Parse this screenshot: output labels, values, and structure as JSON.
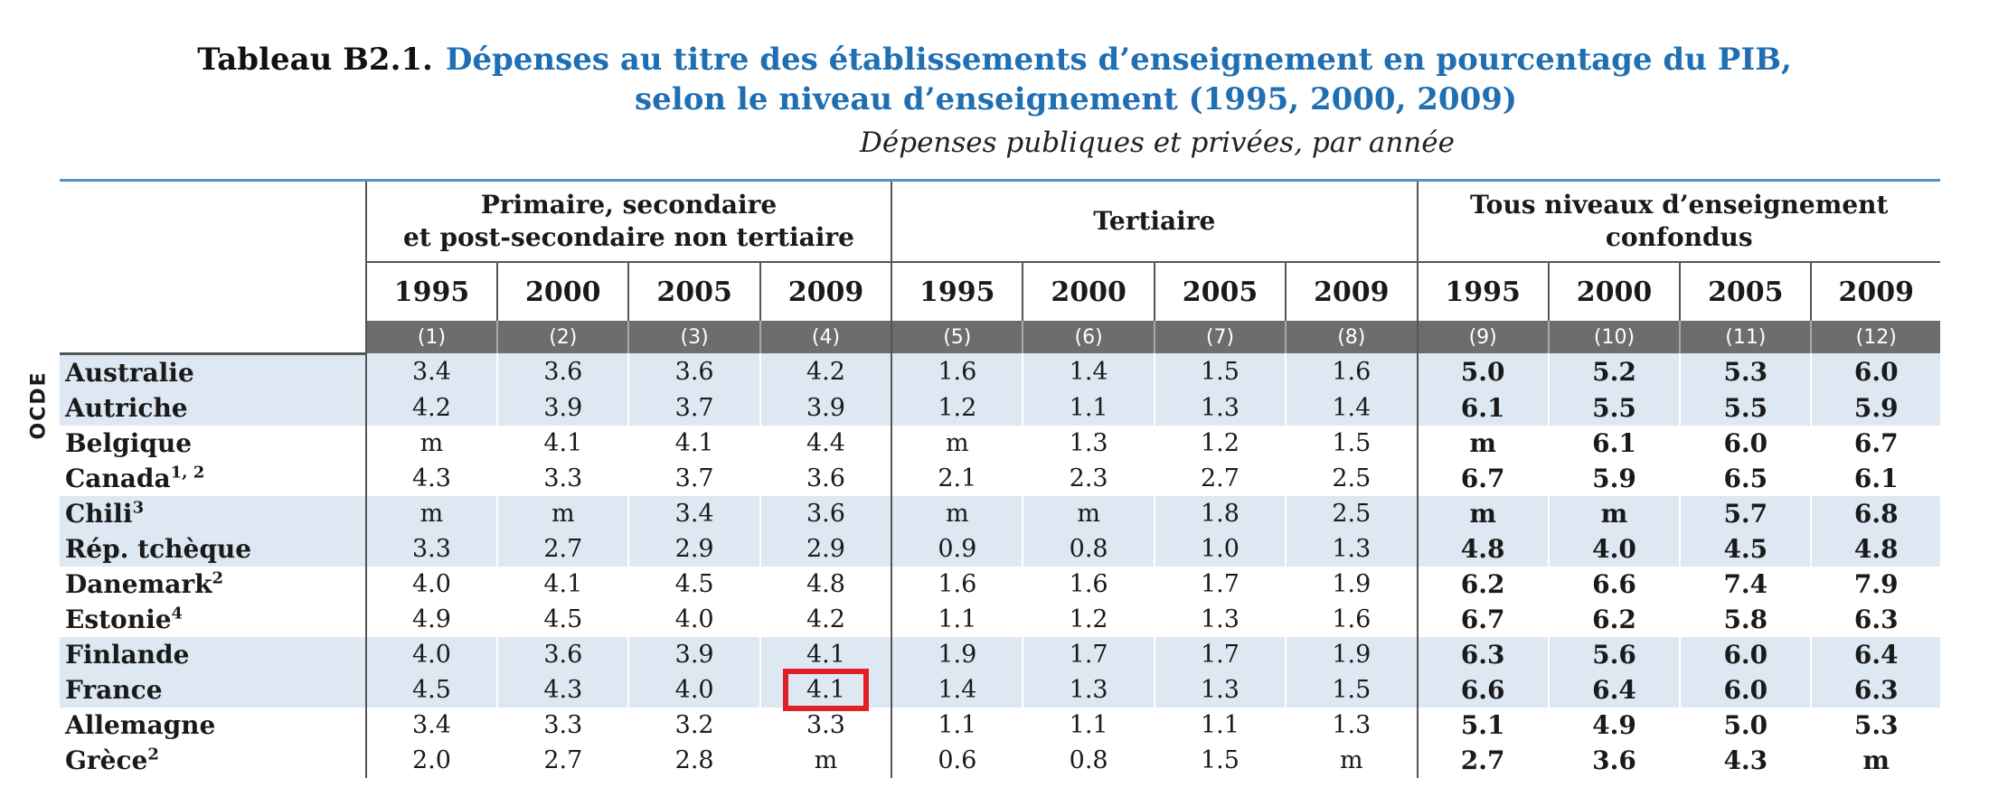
{
  "title": {
    "prefix": "Tableau B2.1.",
    "line1": "Dépenses au titre des établissements d’enseignement en pourcentage du PIB,",
    "line2": "selon le niveau d’enseignement (1995, 2000, 2009)"
  },
  "subtitle": "Dépenses publiques et privées, par année",
  "side_label": "OCDE",
  "groups": [
    {
      "line1": "Primaire, secondaire",
      "line2": "et post-secondaire non tertiaire"
    },
    {
      "line1": "Tertiaire",
      "line2": ""
    },
    {
      "line1": "Tous niveaux d’enseignement",
      "line2": "confondus"
    }
  ],
  "years": [
    "1995",
    "2000",
    "2005",
    "2009",
    "1995",
    "2000",
    "2005",
    "2009",
    "1995",
    "2000",
    "2005",
    "2009"
  ],
  "col_numbers": [
    "(1)",
    "(2)",
    "(3)",
    "(4)",
    "(5)",
    "(6)",
    "(7)",
    "(8)",
    "(9)",
    "(10)",
    "(11)",
    "(12)"
  ],
  "rows": [
    {
      "country": "Australie",
      "sup": "",
      "values": [
        "3.4",
        "3.6",
        "3.6",
        "4.2",
        "1.6",
        "1.4",
        "1.5",
        "1.6",
        "5.0",
        "5.2",
        "5.3",
        "6.0"
      ]
    },
    {
      "country": "Autriche",
      "sup": "",
      "values": [
        "4.2",
        "3.9",
        "3.7",
        "3.9",
        "1.2",
        "1.1",
        "1.3",
        "1.4",
        "6.1",
        "5.5",
        "5.5",
        "5.9"
      ]
    },
    {
      "country": "Belgique",
      "sup": "",
      "values": [
        "m",
        "4.1",
        "4.1",
        "4.4",
        "m",
        "1.3",
        "1.2",
        "1.5",
        "m",
        "6.1",
        "6.0",
        "6.7"
      ]
    },
    {
      "country": "Canada",
      "sup": "1, 2",
      "values": [
        "4.3",
        "3.3",
        "3.7",
        "3.6",
        "2.1",
        "2.3",
        "2.7",
        "2.5",
        "6.7",
        "5.9",
        "6.5",
        "6.1"
      ]
    },
    {
      "country": "Chili",
      "sup": "3",
      "values": [
        "m",
        "m",
        "3.4",
        "3.6",
        "m",
        "m",
        "1.8",
        "2.5",
        "m",
        "m",
        "5.7",
        "6.8"
      ]
    },
    {
      "country": "Rép. tchèque",
      "sup": "",
      "values": [
        "3.3",
        "2.7",
        "2.9",
        "2.9",
        "0.9",
        "0.8",
        "1.0",
        "1.3",
        "4.8",
        "4.0",
        "4.5",
        "4.8"
      ]
    },
    {
      "country": "Danemark",
      "sup": "2",
      "values": [
        "4.0",
        "4.1",
        "4.5",
        "4.8",
        "1.6",
        "1.6",
        "1.7",
        "1.9",
        "6.2",
        "6.6",
        "7.4",
        "7.9"
      ]
    },
    {
      "country": "Estonie",
      "sup": "4",
      "values": [
        "4.9",
        "4.5",
        "4.0",
        "4.2",
        "1.1",
        "1.2",
        "1.3",
        "1.6",
        "6.7",
        "6.2",
        "5.8",
        "6.3"
      ]
    },
    {
      "country": "Finlande",
      "sup": "",
      "values": [
        "4.0",
        "3.6",
        "3.9",
        "4.1",
        "1.9",
        "1.7",
        "1.7",
        "1.9",
        "6.3",
        "5.6",
        "6.0",
        "6.4"
      ]
    },
    {
      "country": "France",
      "sup": "",
      "values": [
        "4.5",
        "4.3",
        "4.0",
        "4.1",
        "1.4",
        "1.3",
        "1.3",
        "1.5",
        "6.6",
        "6.4",
        "6.0",
        "6.3"
      ]
    },
    {
      "country": "Allemagne",
      "sup": "",
      "values": [
        "3.4",
        "3.3",
        "3.2",
        "3.3",
        "1.1",
        "1.1",
        "1.1",
        "1.3",
        "5.1",
        "4.9",
        "5.0",
        "5.3"
      ]
    },
    {
      "country": "Grèce",
      "sup": "2",
      "values": [
        "2.0",
        "2.7",
        "2.8",
        "m",
        "0.6",
        "0.8",
        "1.5",
        "m",
        "2.7",
        "3.6",
        "4.3",
        "m"
      ]
    }
  ],
  "highlight": {
    "row": 9,
    "col": 3,
    "color": "#e02026"
  }
}
